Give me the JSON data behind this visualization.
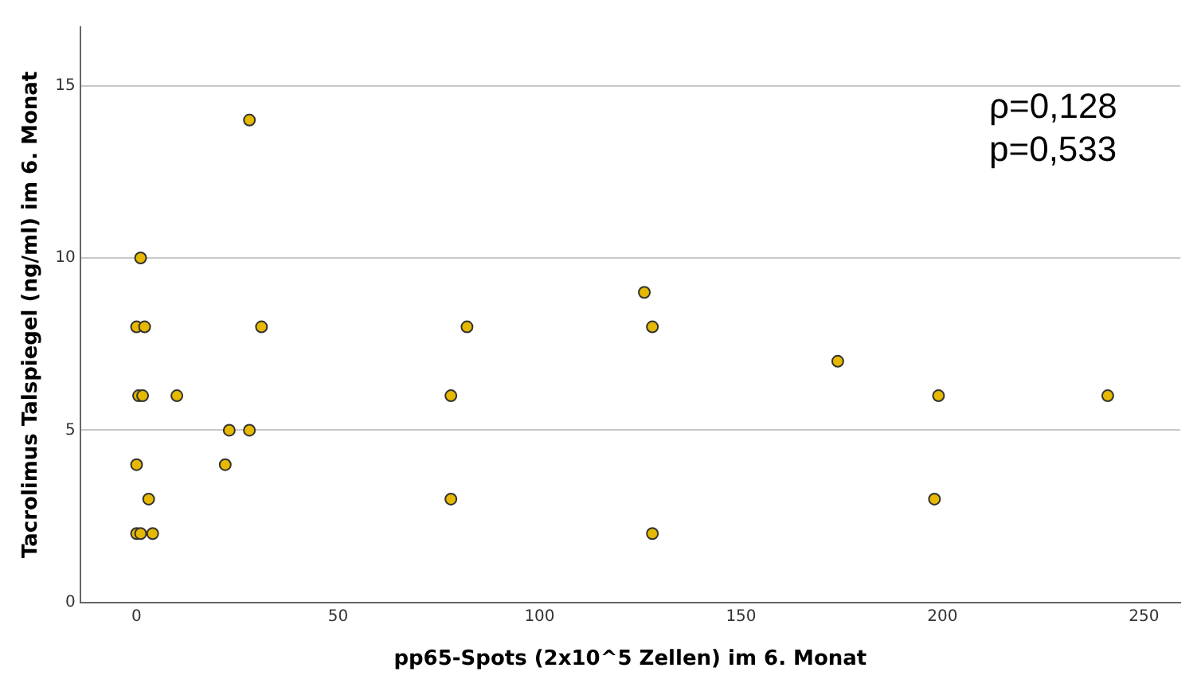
{
  "chart_data": {
    "type": "scatter",
    "xlabel": "pp65-Spots (2x10^5 Zellen) im 6. Monat",
    "ylabel": "Tacrolimus Talspiegel (ng/ml) im 6. Monat",
    "x": [
      28,
      1,
      0,
      2,
      31,
      0.5,
      1.5,
      10,
      23,
      28,
      0,
      22,
      3,
      0,
      1,
      4,
      78,
      78,
      82,
      126,
      128,
      128,
      174,
      199,
      198,
      241
    ],
    "values": [
      14,
      10,
      8,
      8,
      8,
      6,
      6,
      6,
      5,
      5,
      4,
      4,
      3,
      2,
      2,
      2,
      6,
      3,
      8,
      9,
      8,
      2,
      7,
      6,
      3,
      6
    ],
    "color": "#e6b800",
    "marker": "circle",
    "grid": "y",
    "legend": false,
    "xlim": [
      -14,
      259
    ],
    "xticks": [
      0,
      50,
      100,
      150,
      200,
      250
    ],
    "ylim": [
      0,
      16.7
    ],
    "yticks": [
      0,
      5,
      10,
      15
    ],
    "annotations": [
      "ρ=0,128",
      "p=0,533"
    ]
  }
}
